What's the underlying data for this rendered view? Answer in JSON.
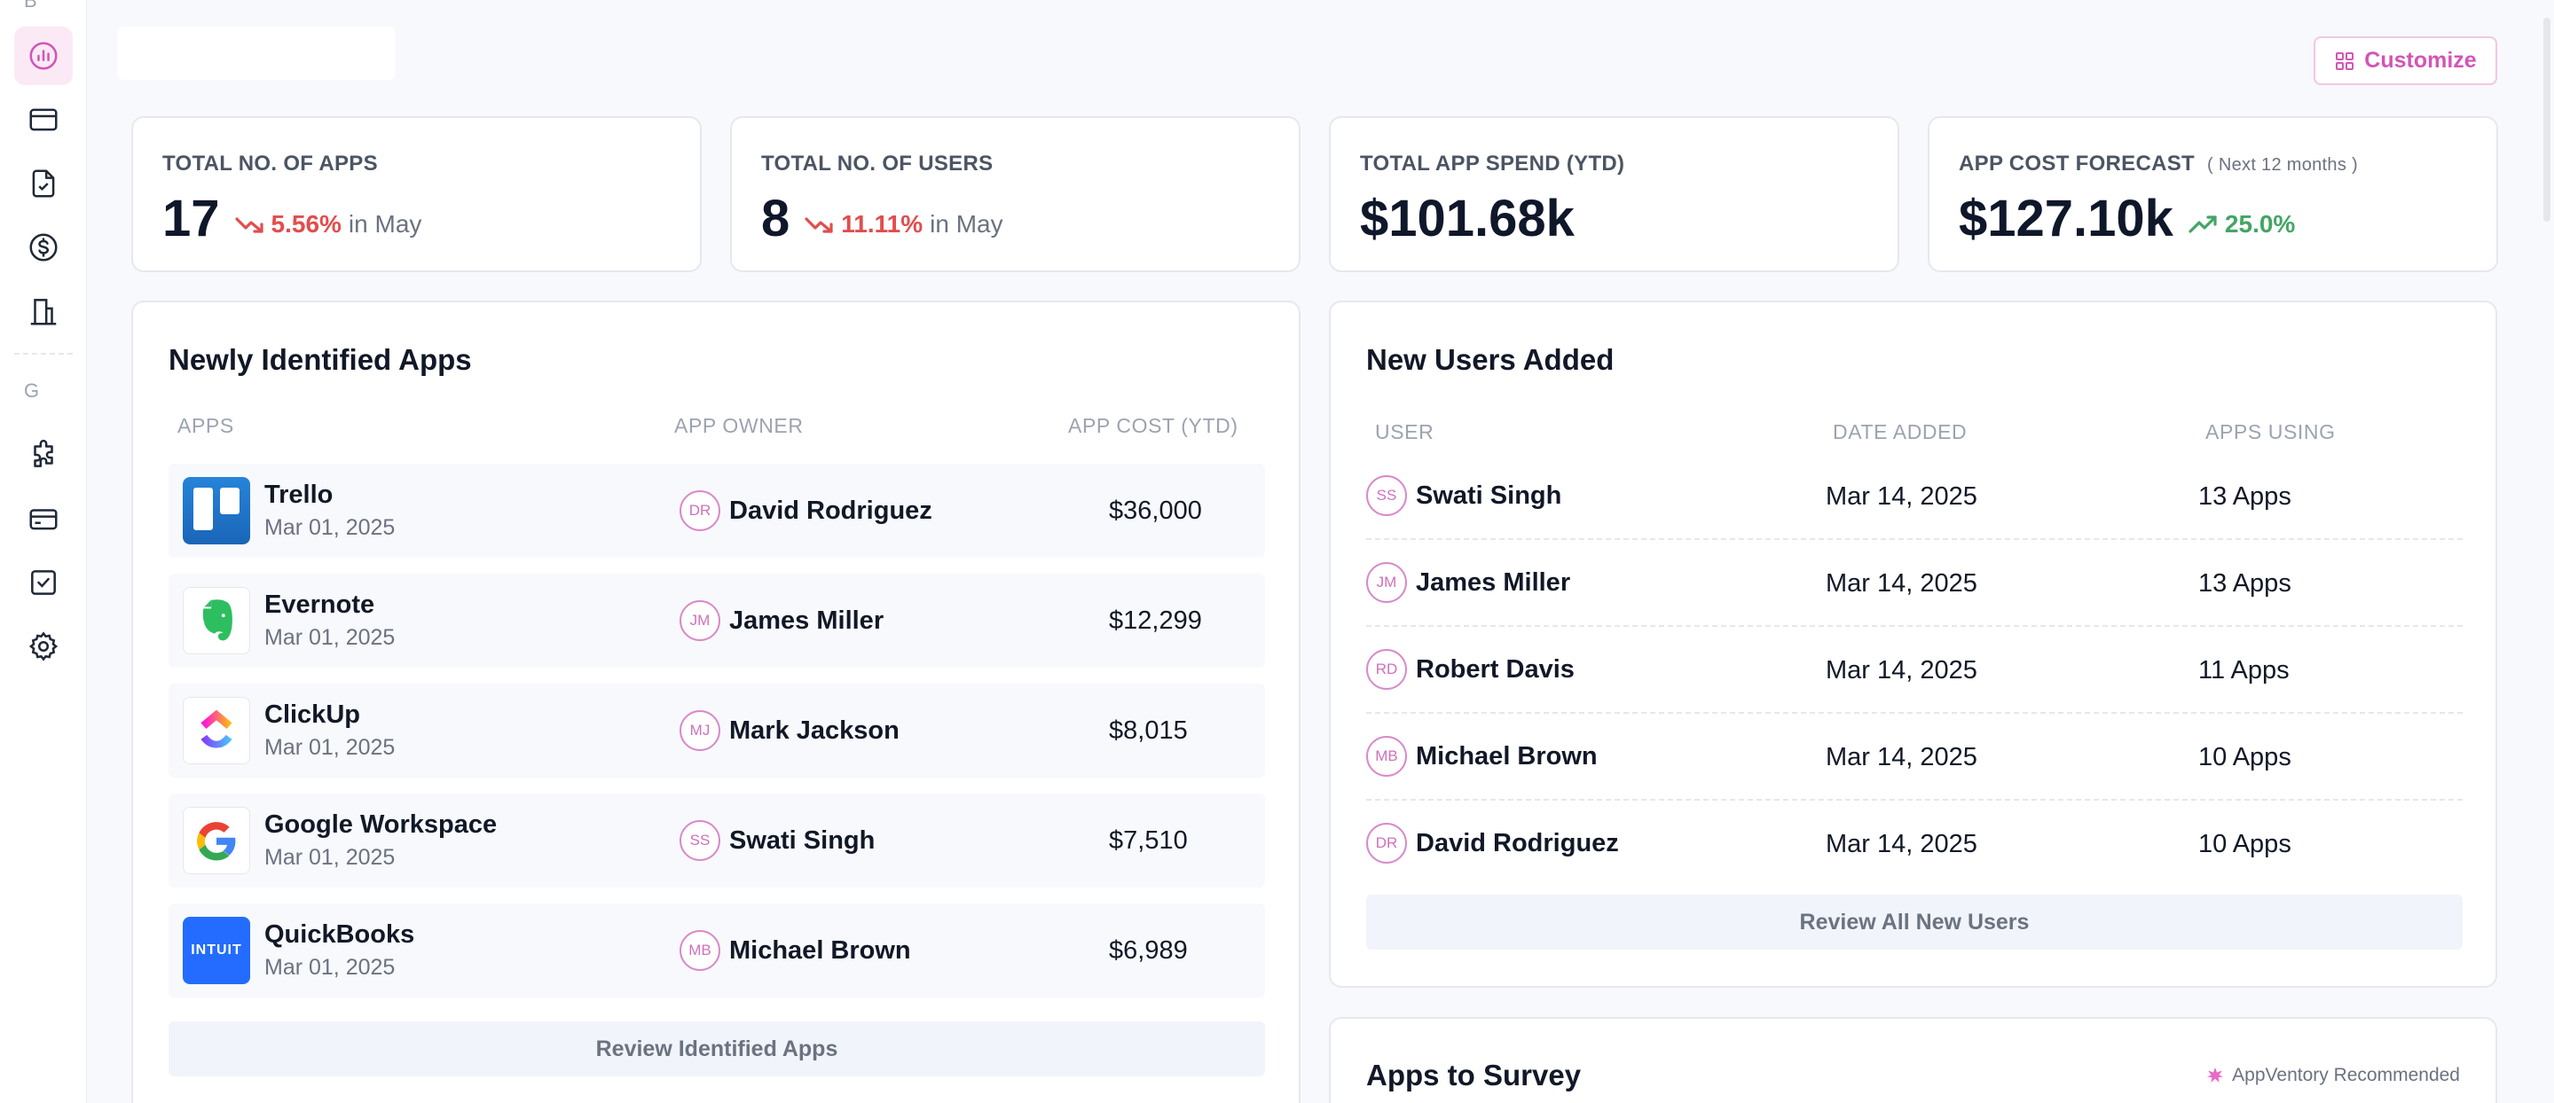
{
  "sidebar": {
    "section_top_letter": "B",
    "section_g_letter": "G",
    "icons": [
      {
        "name": "analytics-icon",
        "active": true
      },
      {
        "name": "browser-window-icon",
        "active": false
      },
      {
        "name": "document-check-icon",
        "active": false
      },
      {
        "name": "dollar-circle-icon",
        "active": false
      },
      {
        "name": "building-icon",
        "active": false
      },
      {
        "name": "puzzle-icon",
        "active": false
      },
      {
        "name": "credit-card-icon",
        "active": false
      },
      {
        "name": "checkbox-icon",
        "active": false
      },
      {
        "name": "settings-icon",
        "active": false
      }
    ]
  },
  "header": {
    "customize_label": "Customize"
  },
  "stats": [
    {
      "label": "TOTAL NO. OF APPS",
      "sub": "",
      "value": "17",
      "trend": "5.56%",
      "trend_dir": "down",
      "suffix": "in May"
    },
    {
      "label": "TOTAL NO. OF USERS",
      "sub": "",
      "value": "8",
      "trend": "11.11%",
      "trend_dir": "down",
      "suffix": "in May"
    },
    {
      "label": "TOTAL APP SPEND (YTD)",
      "sub": "",
      "value": "$101.68k",
      "trend": "",
      "trend_dir": "",
      "suffix": ""
    },
    {
      "label": "APP COST FORECAST",
      "sub": "( Next 12 months )",
      "value": "$127.10k",
      "trend": "25.0%",
      "trend_dir": "up",
      "suffix": ""
    }
  ],
  "apps_panel": {
    "title": "Newly Identified Apps",
    "columns": [
      "APPS",
      "APP OWNER",
      "APP COST (YTD)"
    ],
    "rows": [
      {
        "name": "Trello",
        "date": "Mar 01, 2025",
        "owner_initials": "DR",
        "owner": "David Rodriguez",
        "cost": "$36,000",
        "logo": "trello-logo"
      },
      {
        "name": "Evernote",
        "date": "Mar 01, 2025",
        "owner_initials": "JM",
        "owner": "James Miller",
        "cost": "$12,299",
        "logo": "evernote-logo"
      },
      {
        "name": "ClickUp",
        "date": "Mar 01, 2025",
        "owner_initials": "MJ",
        "owner": "Mark Jackson",
        "cost": "$8,015",
        "logo": "clickup-logo"
      },
      {
        "name": "Google Workspace",
        "date": "Mar 01, 2025",
        "owner_initials": "SS",
        "owner": "Swati Singh",
        "cost": "$7,510",
        "logo": "google-logo"
      },
      {
        "name": "QuickBooks",
        "date": "Mar 01, 2025",
        "owner_initials": "MB",
        "owner": "Michael Brown",
        "cost": "$6,989",
        "logo": "intuit-logo",
        "logo_text": "INTUIT"
      }
    ],
    "review_label": "Review Identified Apps"
  },
  "users_panel": {
    "title": "New Users Added",
    "columns": [
      "USER",
      "DATE ADDED",
      "APPS USING"
    ],
    "rows": [
      {
        "initials": "SS",
        "name": "Swati Singh",
        "date": "Mar 14, 2025",
        "apps": "13 Apps"
      },
      {
        "initials": "JM",
        "name": "James Miller",
        "date": "Mar 14, 2025",
        "apps": "13 Apps"
      },
      {
        "initials": "RD",
        "name": "Robert Davis",
        "date": "Mar 14, 2025",
        "apps": "11 Apps"
      },
      {
        "initials": "MB",
        "name": "Michael Brown",
        "date": "Mar 14, 2025",
        "apps": "10 Apps"
      },
      {
        "initials": "DR",
        "name": "David Rodriguez",
        "date": "Mar 14, 2025",
        "apps": "10 Apps"
      }
    ],
    "review_label": "Review All New Users"
  },
  "survey_panel": {
    "title": "Apps to Survey",
    "recommended_label": "AppVentory Recommended"
  },
  "colors": {
    "accent": "#d355b6",
    "trend_down": "#e24d4d",
    "trend_up": "#43a565"
  }
}
